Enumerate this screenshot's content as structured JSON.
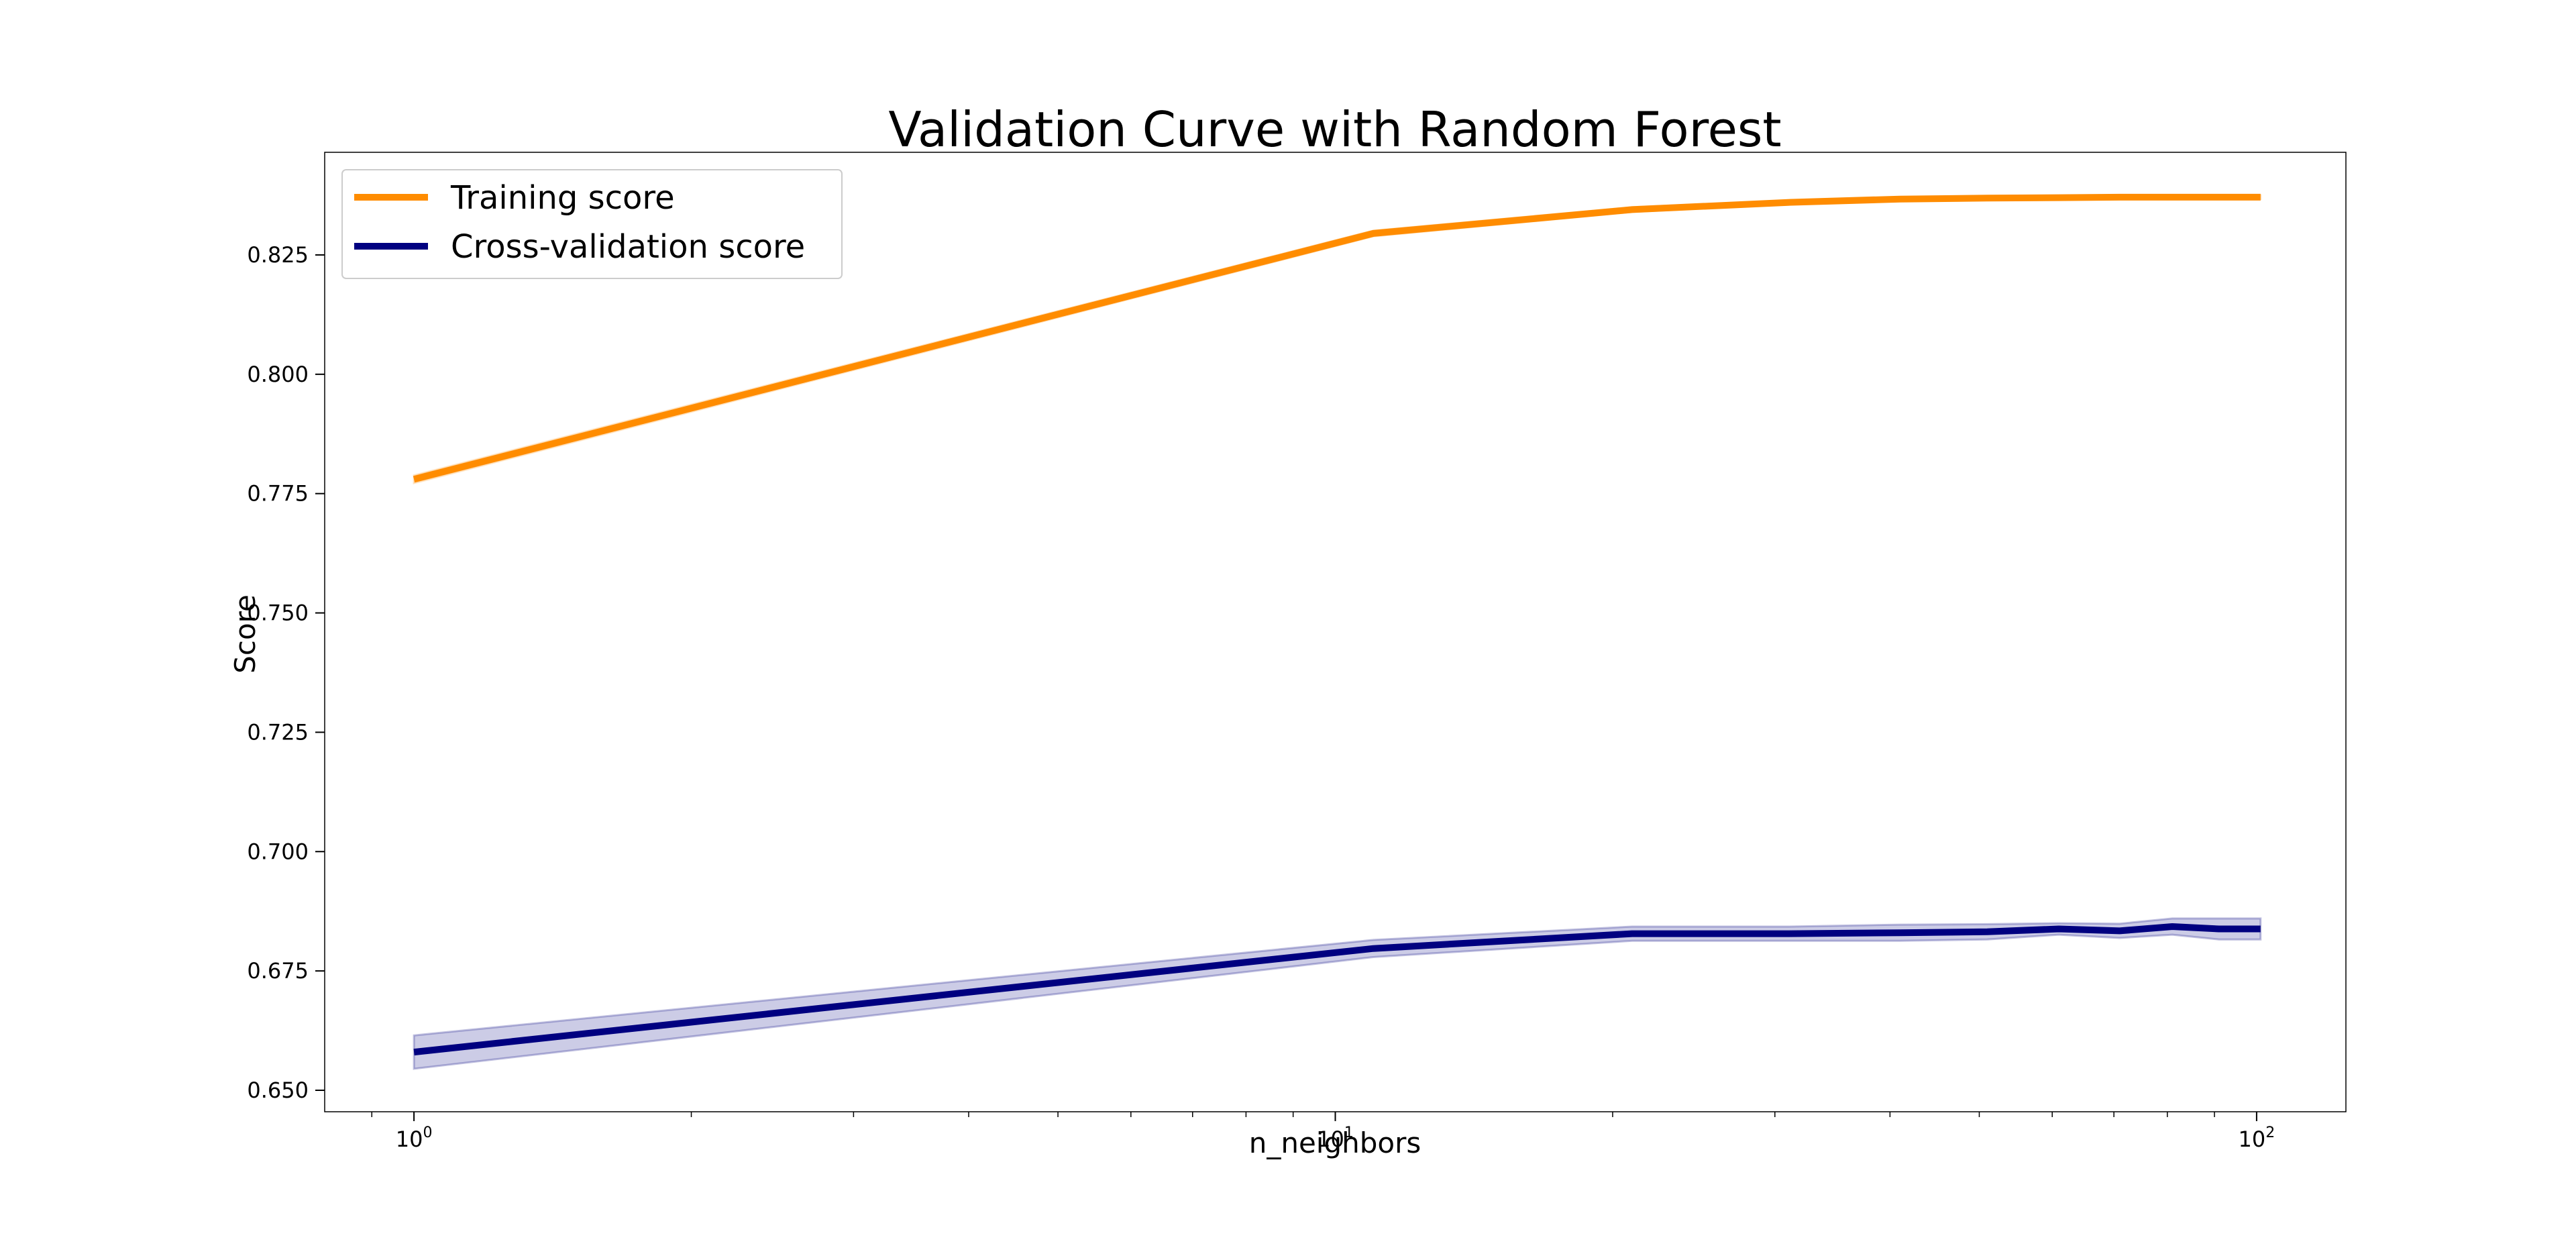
{
  "chart_data": {
    "type": "line",
    "title": "Validation Curve with Random Forest",
    "xlabel": "n_neighbors",
    "ylabel": "Score",
    "xscale": "log",
    "xlim": [
      0.8,
      125
    ],
    "ylim": [
      0.6455,
      0.8465
    ],
    "grid": false,
    "legend_position": "top-left",
    "x_ticks": [
      {
        "value": 1,
        "base": "10",
        "exp": "0"
      },
      {
        "value": 10,
        "base": "10",
        "exp": "1"
      },
      {
        "value": 100,
        "base": "10",
        "exp": "2"
      }
    ],
    "y_ticks": [
      {
        "value": 0.65,
        "label": "0.650"
      },
      {
        "value": 0.675,
        "label": "0.675"
      },
      {
        "value": 0.7,
        "label": "0.700"
      },
      {
        "value": 0.725,
        "label": "0.725"
      },
      {
        "value": 0.75,
        "label": "0.750"
      },
      {
        "value": 0.775,
        "label": "0.775"
      },
      {
        "value": 0.8,
        "label": "0.800"
      },
      {
        "value": 0.825,
        "label": "0.825"
      }
    ],
    "x": [
      1,
      11,
      21,
      31,
      41,
      51,
      61,
      71,
      81,
      91,
      101
    ],
    "series": [
      {
        "name": "Training score",
        "color": "#ff8c00",
        "values": [
          0.778,
          0.8295,
          0.8345,
          0.836,
          0.8367,
          0.8369,
          0.837,
          0.8371,
          0.8371,
          0.8371,
          0.8371
        ],
        "std": [
          0.0008,
          0.0006,
          0.0005,
          0.0004,
          0.0004,
          0.0004,
          0.0004,
          0.0004,
          0.0004,
          0.0004,
          0.0004
        ]
      },
      {
        "name": "Cross-validation score",
        "color": "#000080",
        "values": [
          0.658,
          0.6797,
          0.6828,
          0.6828,
          0.683,
          0.6832,
          0.6838,
          0.6834,
          0.6843,
          0.6838,
          0.6838
        ],
        "std": [
          0.0035,
          0.0018,
          0.0015,
          0.0015,
          0.0017,
          0.0016,
          0.0012,
          0.0015,
          0.0017,
          0.0022,
          0.0022
        ]
      }
    ]
  }
}
